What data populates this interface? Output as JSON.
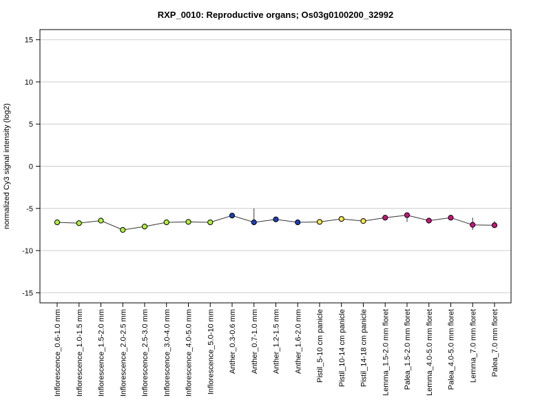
{
  "chart_data": {
    "type": "line",
    "title": "RXP_0010: Reproductive organs; Os03g0100200_32992",
    "ylabel": "normalized Cy3 signal intensity (log2)",
    "xlabel": "",
    "ylim": [
      -16.2,
      16.2
    ],
    "yticks": [
      -15,
      -10,
      -5,
      0,
      5,
      10,
      15
    ],
    "grid": true,
    "categories": [
      "Inflorescence_0.6-1.0 mm",
      "Inflorescence_1.0-1.5 mm",
      "Inflorescence_1.5-2.0 mm",
      "Inflorescence_2.0-2.5 mm",
      "Inflorescence_2.5-3.0 mm",
      "Inflorescence_3.0-4.0 mm",
      "Inflorescence_4.0-5.0 mm",
      "Inflorescence_5.0-10 mm",
      "Anther_0.3-0.6 mm",
      "Anther_0.7-1.0 mm",
      "Anther_1.2-1.5 mm",
      "Anther_1.6-2.0 mm",
      "Pistil_5-10 cm panicle",
      "Pistil_10-14 cm panicle",
      "Pistil_14-18 cm panicle",
      "Lemma_1.5-2.0 mm floret",
      "Palea_1.5-2.0 mm floret",
      "Lemma_4.0-5.0 mm floret",
      "Palea_4.0-5.0 mm floret",
      "Lemma_7.0 mm floret",
      "Palea_7.0 mm floret"
    ],
    "values": [
      -6.65,
      -6.75,
      -6.45,
      -7.55,
      -7.15,
      -6.65,
      -6.6,
      -6.65,
      -5.85,
      -6.65,
      -6.3,
      -6.65,
      -6.6,
      -6.25,
      -6.5,
      -6.1,
      -5.8,
      -6.45,
      -6.1,
      -6.95,
      -7.0
    ],
    "err_low": [
      -6.65,
      -6.75,
      -6.6,
      -7.55,
      -7.25,
      -6.65,
      -6.7,
      -6.7,
      -5.95,
      -6.65,
      -6.55,
      -6.65,
      -6.6,
      -6.25,
      -6.5,
      -6.1,
      -6.6,
      -6.45,
      -6.1,
      -7.55,
      -7.05
    ],
    "err_high": [
      -6.65,
      -6.75,
      -6.3,
      -7.55,
      -7.05,
      -6.65,
      -6.55,
      -6.6,
      -5.75,
      -5.0,
      -6.1,
      -6.65,
      -6.6,
      -6.25,
      -6.5,
      -6.1,
      -5.6,
      -6.45,
      -6.1,
      -6.1,
      -6.5
    ],
    "point_colors": [
      "#aef03a",
      "#aef03a",
      "#aef03a",
      "#aef03a",
      "#aef03a",
      "#aef03a",
      "#aef03a",
      "#aef03a",
      "#1c3fb8",
      "#1c3fb8",
      "#1c3fb8",
      "#1c3fb8",
      "#f2e44a",
      "#f2e44a",
      "#f2e44a",
      "#c8147e",
      "#c8147e",
      "#c8147e",
      "#c8147e",
      "#c8147e",
      "#c8147e"
    ],
    "line_color": "#333333"
  }
}
